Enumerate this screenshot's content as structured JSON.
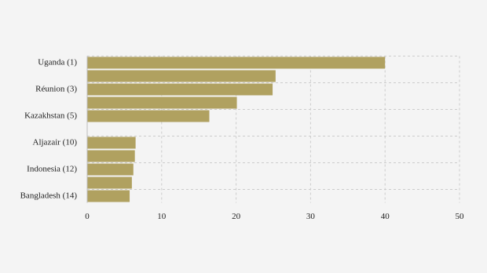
{
  "chart_data": {
    "type": "bar",
    "orientation": "horizontal",
    "categories": [
      "Uganda (1)",
      null,
      "Réunion (3)",
      null,
      "Kazakhstan (5)",
      null,
      "Aljazair (10)",
      null,
      "Indonesia (12)",
      null,
      "Bangladesh (14)"
    ],
    "values": [
      40.0,
      25.3,
      24.9,
      20.1,
      16.4,
      null,
      6.5,
      6.4,
      6.2,
      6.0,
      5.7
    ],
    "color": "#b0a160",
    "xlim": [
      0,
      50
    ],
    "xticks": [
      0,
      10,
      20,
      30,
      40,
      50
    ],
    "grid": true
  }
}
